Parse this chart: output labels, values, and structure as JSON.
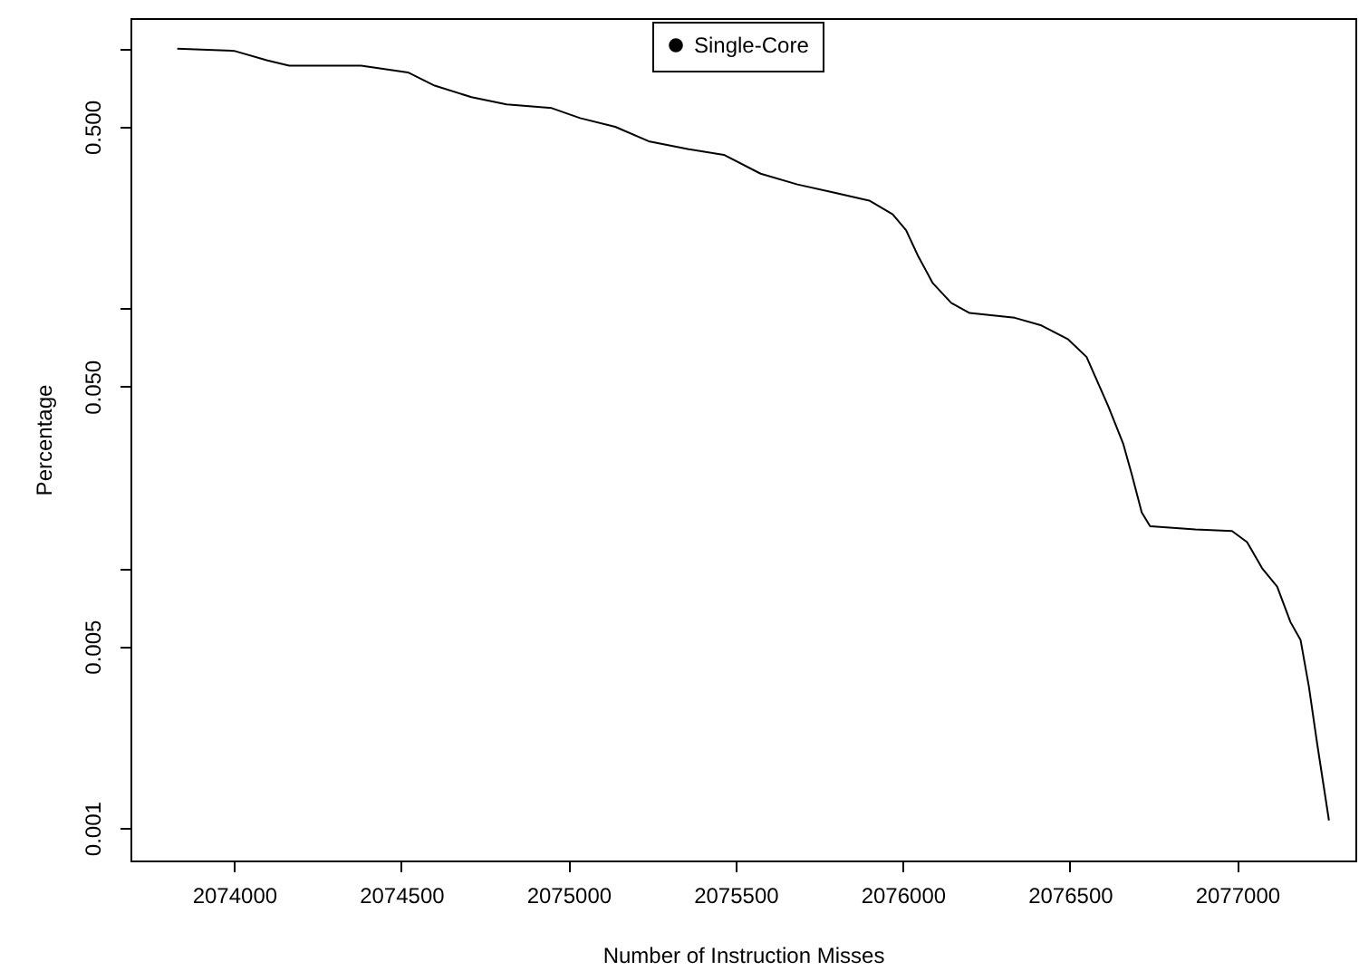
{
  "chart_data": {
    "type": "line",
    "xlabel": "Number of Instruction Misses",
    "ylabel": "Percentage",
    "log": "y",
    "legend": "top",
    "marker": "none",
    "line_style": "solid",
    "grid": false,
    "xlim": [
      2073690,
      2077354
    ],
    "xticks": [
      2074000,
      2074500,
      2075000,
      2075500,
      2076000,
      2076500,
      2077000
    ],
    "ylim": [
      0.00075,
      1.31
    ],
    "yticks": [
      {
        "value": 1,
        "label": null
      },
      {
        "value": 0.5,
        "label": "0.500"
      },
      {
        "value": 0.1,
        "label": null
      },
      {
        "value": 0.05,
        "label": "0.050"
      },
      {
        "value": 0.01,
        "label": null
      },
      {
        "value": 0.005,
        "label": "0.005"
      },
      {
        "value": 0.001,
        "label": "0.001"
      }
    ],
    "series": [
      {
        "name": "Single-Core",
        "color": "#000000",
        "x": [
          2073830,
          2074000,
          2074100,
          2074165,
          2074380,
          2074520,
          2074600,
          2074710,
          2074815,
          2074950,
          2075035,
          2075140,
          2075240,
          2075360,
          2075465,
          2075575,
          2075685,
          2075790,
          2075900,
          2075970,
          2076010,
          2076045,
          2076090,
          2076145,
          2076200,
          2076335,
          2076415,
          2076495,
          2076550,
          2076615,
          2076660,
          2076685,
          2076715,
          2076740,
          2076875,
          2076985,
          2077030,
          2077075,
          2077120,
          2077160,
          2077190,
          2077215,
          2077240,
          2077275
        ],
        "values": [
          1.0,
          0.98,
          0.9,
          0.86,
          0.86,
          0.81,
          0.72,
          0.65,
          0.61,
          0.59,
          0.54,
          0.5,
          0.44,
          0.41,
          0.39,
          0.33,
          0.3,
          0.28,
          0.26,
          0.23,
          0.2,
          0.16,
          0.125,
          0.105,
          0.096,
          0.092,
          0.086,
          0.076,
          0.065,
          0.042,
          0.03,
          0.023,
          0.0164,
          0.0145,
          0.0141,
          0.0139,
          0.0126,
          0.01,
          0.0085,
          0.0062,
          0.0053,
          0.0035,
          0.0021,
          0.00107
        ]
      }
    ]
  }
}
